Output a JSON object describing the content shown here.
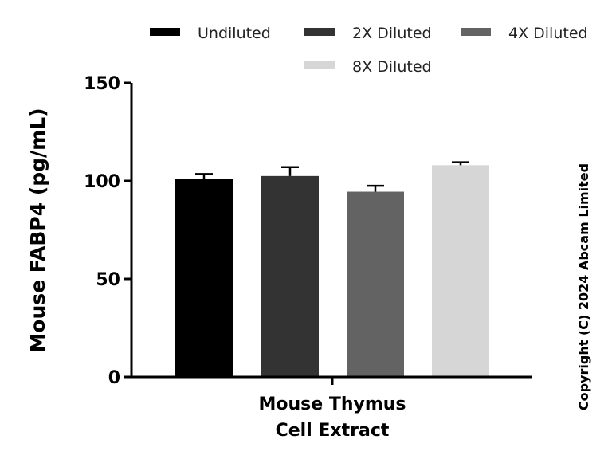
{
  "chart_data": {
    "type": "bar",
    "categories": [
      "Mouse Thymus\nCell Extract"
    ],
    "xlabel_lines": [
      "Mouse Thymus",
      "Cell Extract"
    ],
    "ylabel": "Mouse FABP4 (pg/mL)",
    "ylim": [
      0,
      150
    ],
    "yticks": [
      0,
      50,
      100,
      150
    ],
    "legend_position": "top",
    "grid": false,
    "series": [
      {
        "name": "Undiluted",
        "values": [
          101
        ],
        "error": [
          2.5
        ],
        "color": "#000000"
      },
      {
        "name": "2X Diluted",
        "values": [
          102.5
        ],
        "error": [
          4.5
        ],
        "color": "#333333"
      },
      {
        "name": "4X Diluted",
        "values": [
          94.5
        ],
        "error": [
          3
        ],
        "color": "#636363"
      },
      {
        "name": "8X Diluted",
        "values": [
          108
        ],
        "error": [
          1.5
        ],
        "color": "#d6d6d6"
      }
    ]
  },
  "copyright": "Copyright (C) 2024 Abcam Limited"
}
